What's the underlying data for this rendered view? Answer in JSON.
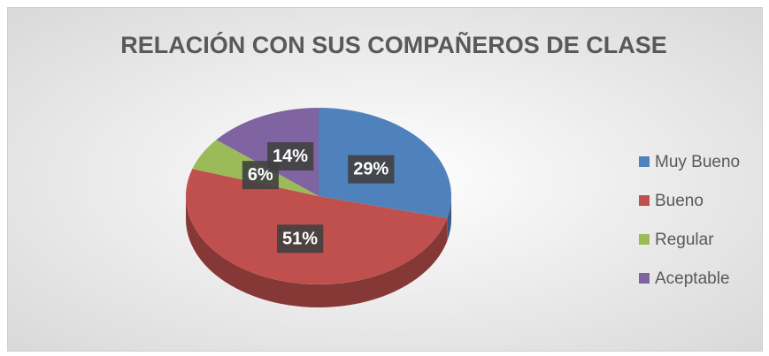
{
  "chart_data": {
    "type": "pie",
    "title": "RELACIÓN CON SUS COMPAÑEROS DE CLASE",
    "categories": [
      "Muy Bueno",
      "Bueno",
      "Regular",
      "Aceptable"
    ],
    "values": [
      29,
      51,
      6,
      14
    ],
    "value_labels": [
      "29%",
      "51%",
      "6%",
      "14%"
    ],
    "colors": [
      "#4f81bd",
      "#c0504d",
      "#9bbb59",
      "#8064a2"
    ],
    "legend": "right"
  }
}
